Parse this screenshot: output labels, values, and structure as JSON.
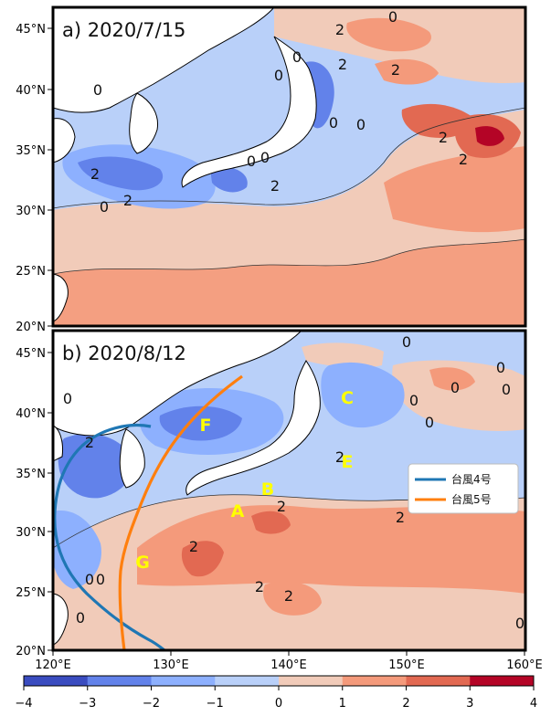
{
  "panels": [
    {
      "title": "a) 2020/7/15",
      "lat_ticks": [
        "45°N",
        "40°N",
        "35°N",
        "30°N",
        "25°N",
        "20°N"
      ],
      "contour_labels": [
        "0",
        "2",
        "0",
        "2",
        "0",
        "2",
        "0",
        "2",
        "2",
        "0",
        "0",
        "2",
        "0",
        "2",
        "0",
        "0",
        "2"
      ]
    },
    {
      "title": "b) 2020/8/12",
      "lat_ticks": [
        "45°N",
        "40°N",
        "35°N",
        "30°N",
        "25°N",
        "20°N"
      ],
      "contour_labels": [
        "0",
        "2",
        "0",
        "2",
        "0",
        "0",
        "0",
        "2",
        "2",
        "2",
        "0",
        "0",
        "0",
        "0",
        "2",
        "0",
        "0",
        "2"
      ],
      "points": [
        "A",
        "B",
        "C",
        "E",
        "F",
        "G"
      ],
      "legend": [
        {
          "label": "台風4号",
          "color": "#1f77b4"
        },
        {
          "label": "台風5号",
          "color": "#ff7f0e"
        }
      ]
    }
  ],
  "lon_ticks": [
    "120°E",
    "130°E",
    "140°E",
    "150°E",
    "160°E"
  ],
  "colorbar": {
    "ticks": [
      "−4",
      "−3",
      "−2",
      "−1",
      "0",
      "1",
      "2",
      "3",
      "4"
    ],
    "colors": [
      "#3a4cc0",
      "#6282ea",
      "#8db0fe",
      "#b9d0f9",
      "#f1cbb9",
      "#f49a7b",
      "#e26952",
      "#b40426"
    ]
  }
}
